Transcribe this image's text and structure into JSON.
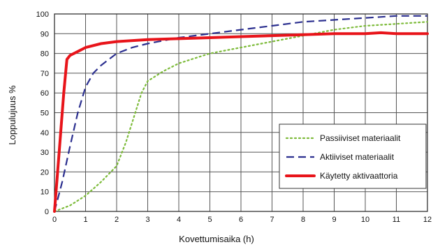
{
  "chart_data": {
    "type": "line",
    "title": "",
    "xlabel": "Kovettumisaika  (h)",
    "ylabel": "Loppulujuus %",
    "xlim": [
      0,
      12
    ],
    "ylim": [
      0,
      100
    ],
    "xticks": [
      0,
      1,
      2,
      3,
      4,
      5,
      6,
      7,
      8,
      9,
      10,
      11,
      12
    ],
    "yticks": [
      0,
      10,
      20,
      30,
      40,
      50,
      60,
      70,
      80,
      90,
      100
    ],
    "grid": true,
    "legend_position": "lower-right",
    "series": [
      {
        "name": "Passiiviset materiaalit",
        "style": "dotted",
        "color": "#7dbb3a",
        "x": [
          0,
          0.5,
          1,
          1.5,
          2,
          2.3,
          2.6,
          2.8,
          3,
          3.5,
          4,
          5,
          6,
          7,
          8,
          9,
          10,
          11,
          12
        ],
        "y": [
          0,
          3,
          8,
          15,
          23,
          35,
          50,
          60,
          66,
          71,
          75,
          80,
          83,
          86,
          89,
          92,
          94,
          95,
          96
        ]
      },
      {
        "name": "Aktiiviset materiaalit",
        "style": "dashed",
        "color": "#2b2f8f",
        "x": [
          0,
          0.25,
          0.5,
          0.75,
          1,
          1.25,
          1.5,
          2,
          2.5,
          3,
          4,
          5,
          6,
          7,
          8,
          9,
          10,
          11,
          12
        ],
        "y": [
          0,
          15,
          33,
          50,
          63,
          70,
          74,
          80,
          83,
          85,
          88,
          90,
          92,
          94,
          96,
          97,
          98,
          99,
          99
        ]
      },
      {
        "name": "Käytetty aktivaattoria",
        "style": "solid",
        "color": "#e8141a",
        "x": [
          0,
          0.1,
          0.2,
          0.3,
          0.4,
          0.5,
          0.75,
          1,
          1.5,
          2,
          3,
          4,
          5,
          6,
          7,
          8,
          9,
          10,
          10.5,
          11,
          12
        ],
        "y": [
          0,
          20,
          40,
          60,
          77,
          79,
          81,
          83,
          85,
          86,
          87,
          87.5,
          88,
          88.5,
          89,
          89.5,
          90,
          90,
          90.5,
          90,
          90
        ]
      }
    ]
  }
}
